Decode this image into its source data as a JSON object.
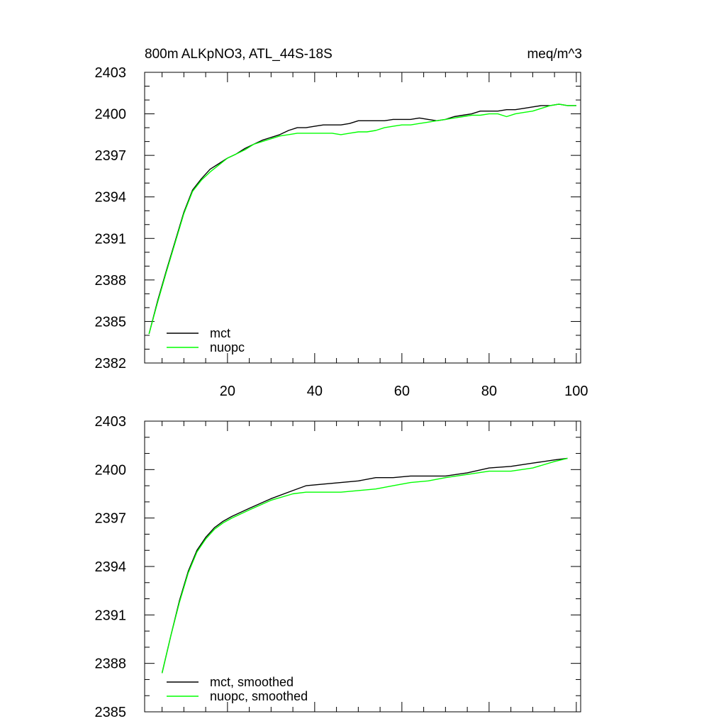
{
  "chart_data": [
    {
      "type": "line",
      "title": "800m ALKpNO3, ATL_44S-18S",
      "units": "meq/m^3",
      "xlim": [
        1,
        101
      ],
      "ylim": [
        2382,
        2403
      ],
      "xticks": [
        20,
        40,
        60,
        80,
        100
      ],
      "xtick_labels": [
        "20",
        "40",
        "60",
        "80",
        "100"
      ],
      "yticks": [
        2382,
        2385,
        2388,
        2391,
        2394,
        2397,
        2400,
        2403
      ],
      "ytick_labels": [
        "2382",
        "2385",
        "2388",
        "2391",
        "2394",
        "2397",
        "2400",
        "2403"
      ],
      "grid": false,
      "legend_position": "bottom-left",
      "series": [
        {
          "name": "mct",
          "color": "#000000",
          "x": [
            2,
            4,
            6,
            8,
            10,
            12,
            14,
            16,
            18,
            20,
            22,
            24,
            26,
            28,
            30,
            32,
            34,
            36,
            38,
            40,
            42,
            44,
            46,
            48,
            50,
            52,
            54,
            56,
            58,
            60,
            62,
            64,
            66,
            68,
            70,
            72,
            74,
            76,
            78,
            80,
            82,
            84,
            86,
            88,
            90,
            92,
            94,
            96,
            98,
            100
          ],
          "values": [
            2384.1,
            2386.5,
            2388.7,
            2390.8,
            2392.9,
            2394.5,
            2395.3,
            2396.0,
            2396.4,
            2396.8,
            2397.1,
            2397.5,
            2397.8,
            2398.1,
            2398.3,
            2398.5,
            2398.8,
            2399.0,
            2399.0,
            2399.1,
            2399.2,
            2399.2,
            2399.2,
            2399.3,
            2399.5,
            2399.5,
            2399.5,
            2399.5,
            2399.6,
            2399.6,
            2399.6,
            2399.7,
            2399.6,
            2399.5,
            2399.6,
            2399.8,
            2399.9,
            2400.0,
            2400.2,
            2400.2,
            2400.2,
            2400.3,
            2400.3,
            2400.4,
            2400.5,
            2400.6,
            2400.6,
            2400.7,
            2400.6,
            2400.6
          ]
        },
        {
          "name": "nuopc",
          "color": "#00ff00",
          "x": [
            2,
            4,
            6,
            8,
            10,
            12,
            14,
            16,
            18,
            20,
            22,
            24,
            26,
            28,
            30,
            32,
            34,
            36,
            38,
            40,
            42,
            44,
            46,
            48,
            50,
            52,
            54,
            56,
            58,
            60,
            62,
            64,
            66,
            68,
            70,
            72,
            74,
            76,
            78,
            80,
            82,
            84,
            86,
            88,
            90,
            92,
            94,
            96,
            98,
            100
          ],
          "values": [
            2384.1,
            2386.4,
            2388.6,
            2390.7,
            2392.8,
            2394.4,
            2395.2,
            2395.8,
            2396.3,
            2396.8,
            2397.1,
            2397.4,
            2397.8,
            2398.0,
            2398.2,
            2398.4,
            2398.5,
            2398.6,
            2398.6,
            2398.6,
            2398.6,
            2398.6,
            2398.5,
            2398.6,
            2398.7,
            2398.7,
            2398.8,
            2399.0,
            2399.1,
            2399.2,
            2399.2,
            2399.3,
            2399.4,
            2399.5,
            2399.6,
            2399.7,
            2399.8,
            2399.9,
            2399.9,
            2400.0,
            2400.0,
            2399.8,
            2400.0,
            2400.1,
            2400.2,
            2400.4,
            2400.6,
            2400.7,
            2400.6,
            2400.6
          ]
        }
      ]
    },
    {
      "type": "line",
      "xlim": [
        1,
        101
      ],
      "ylim": [
        2385,
        2403
      ],
      "xticks": [
        20,
        40,
        60,
        80,
        100
      ],
      "yticks": [
        2385,
        2388,
        2391,
        2394,
        2397,
        2400,
        2403
      ],
      "ytick_labels": [
        "2385",
        "2388",
        "2391",
        "2394",
        "2397",
        "2400",
        "2403"
      ],
      "grid": false,
      "legend_position": "bottom-left",
      "series": [
        {
          "name": "mct, smoothed",
          "color": "#000000",
          "x": [
            5,
            7,
            9,
            11,
            13,
            15,
            17,
            19,
            21,
            25,
            30,
            35,
            38,
            42,
            46,
            50,
            54,
            58,
            62,
            66,
            70,
            75,
            80,
            85,
            90,
            95,
            98
          ],
          "values": [
            2387.4,
            2389.7,
            2391.9,
            2393.7,
            2395.0,
            2395.8,
            2396.4,
            2396.8,
            2397.1,
            2397.6,
            2398.2,
            2398.7,
            2399.0,
            2399.1,
            2399.2,
            2399.3,
            2399.5,
            2399.5,
            2399.6,
            2399.6,
            2399.6,
            2399.8,
            2400.1,
            2400.2,
            2400.4,
            2400.6,
            2400.7
          ]
        },
        {
          "name": "nuopc, smoothed",
          "color": "#00ff00",
          "x": [
            5,
            7,
            9,
            11,
            13,
            15,
            17,
            19,
            21,
            25,
            30,
            35,
            38,
            42,
            46,
            50,
            54,
            58,
            62,
            66,
            70,
            75,
            80,
            85,
            90,
            95,
            98
          ],
          "values": [
            2387.4,
            2389.7,
            2391.8,
            2393.6,
            2394.9,
            2395.7,
            2396.3,
            2396.7,
            2397.0,
            2397.5,
            2398.1,
            2398.5,
            2398.6,
            2398.6,
            2398.6,
            2398.7,
            2398.8,
            2399.0,
            2399.2,
            2399.3,
            2399.5,
            2399.7,
            2399.9,
            2399.9,
            2400.1,
            2400.5,
            2400.7
          ]
        }
      ]
    }
  ]
}
